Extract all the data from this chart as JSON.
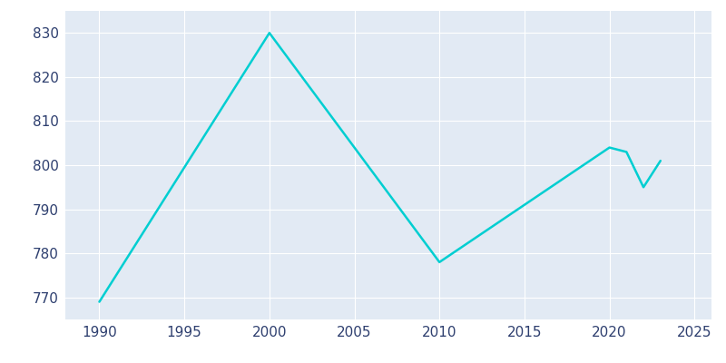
{
  "years": [
    1990,
    2000,
    2010,
    2020,
    2021,
    2022,
    2023
  ],
  "population": [
    769,
    830,
    778,
    804,
    803,
    795,
    801
  ],
  "line_color": "#00CED1",
  "figure_facecolor": "#FFFFFF",
  "plot_facecolor": "#E2EAF4",
  "xlim": [
    1988,
    2026
  ],
  "ylim": [
    765,
    835
  ],
  "yticks": [
    770,
    780,
    790,
    800,
    810,
    820,
    830
  ],
  "xticks": [
    1990,
    1995,
    2000,
    2005,
    2010,
    2015,
    2020,
    2025
  ],
  "tick_color": "#2E3F6F",
  "grid_color": "#FFFFFF",
  "line_width": 1.8
}
